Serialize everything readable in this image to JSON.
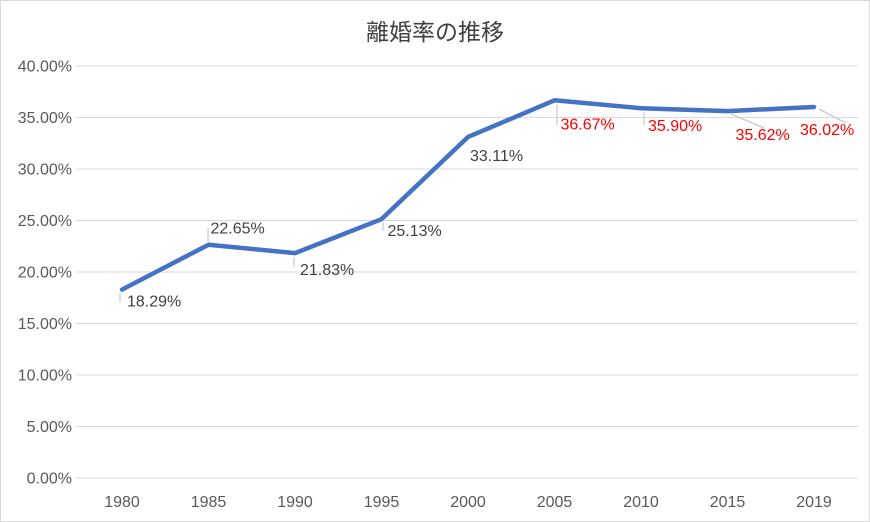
{
  "page": {
    "background_color": "#FFFFFF",
    "frame_border_color": "#D9D9D9"
  },
  "chart_data": {
    "type": "line",
    "title": "離婚率の推移",
    "xlabel": "",
    "ylabel": "",
    "categories": [
      "1980",
      "1985",
      "1990",
      "1995",
      "2000",
      "2005",
      "2010",
      "2015",
      "2019"
    ],
    "values": [
      18.29,
      22.65,
      21.83,
      25.13,
      33.11,
      36.67,
      35.9,
      35.62,
      36.02
    ],
    "data_labels": [
      {
        "text": "18.29%",
        "color": "#404040"
      },
      {
        "text": "22.65%",
        "color": "#404040"
      },
      {
        "text": "21.83%",
        "color": "#404040"
      },
      {
        "text": "25.13%",
        "color": "#404040"
      },
      {
        "text": "33.11%",
        "color": "#404040"
      },
      {
        "text": "36.67%",
        "color": "#FF0000"
      },
      {
        "text": "35.90%",
        "color": "#FF0000"
      },
      {
        "text": "35.62%",
        "color": "#FF0000"
      },
      {
        "text": "36.02%",
        "color": "#FF0000"
      }
    ],
    "ylim": [
      0,
      40
    ],
    "ytick_values": [
      0,
      5,
      10,
      15,
      20,
      25,
      30,
      35,
      40
    ],
    "ytick_labels": [
      "0.00%",
      "5.00%",
      "10.00%",
      "15.00%",
      "20.00%",
      "25.00%",
      "30.00%",
      "35.00%",
      "40.00%"
    ],
    "grid": true,
    "legend": false,
    "line_color": "#4472C4",
    "gridline_color": "#D9D9D9",
    "leader_line_color": "#BFBFBF",
    "axis_text_color": "#595959",
    "title_color": "#404040"
  }
}
